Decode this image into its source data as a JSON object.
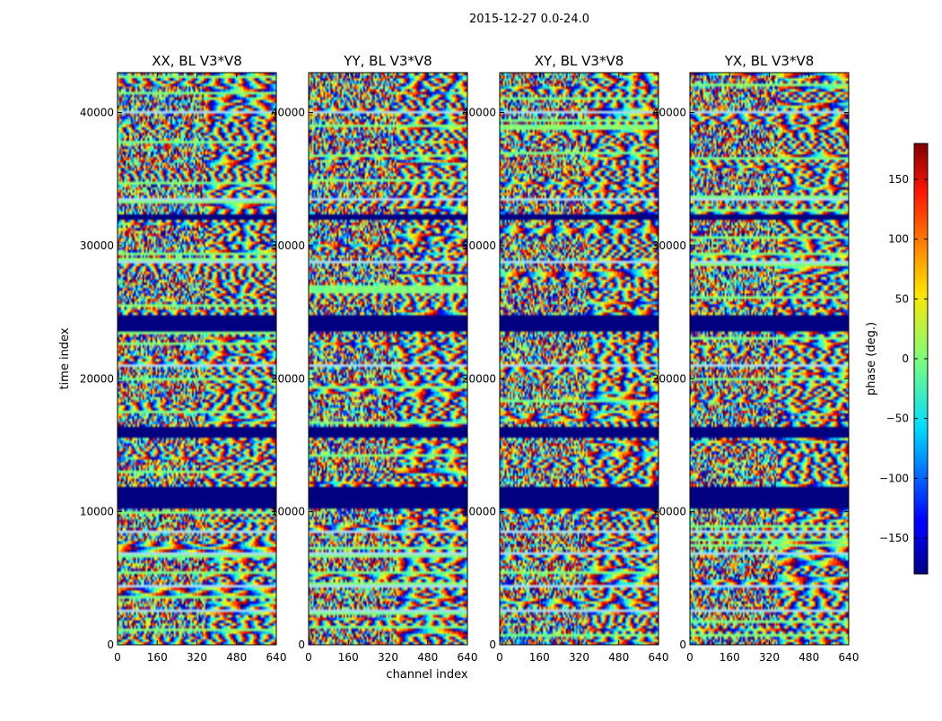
{
  "figure": {
    "suptitle": "2015-12-27 0.0-24.0",
    "ylabel": "time index",
    "xlabel": "channel index"
  },
  "chart_data": {
    "type": "heatmap",
    "panels": [
      {
        "title": "XX, BL V3*V8"
      },
      {
        "title": "YY, BL V3*V8"
      },
      {
        "title": "XY, BL V3*V8"
      },
      {
        "title": "YX, BL V3*V8"
      }
    ],
    "x_ticks": [
      0,
      160,
      320,
      480,
      640
    ],
    "y_ticks": [
      0,
      10000,
      20000,
      30000,
      40000
    ],
    "xlim": [
      0,
      640
    ],
    "ylim": [
      0,
      43000
    ],
    "flagged_rows": [
      [
        10300,
        11800
      ],
      [
        15600,
        16400
      ],
      [
        23600,
        24800
      ],
      [
        32000,
        32400
      ]
    ],
    "colorbar": {
      "label": "phase (deg.)",
      "ticks": [
        -150,
        -100,
        -50,
        0,
        50,
        100,
        150
      ],
      "range": [
        -180,
        180
      ],
      "colormap": "jet"
    }
  }
}
